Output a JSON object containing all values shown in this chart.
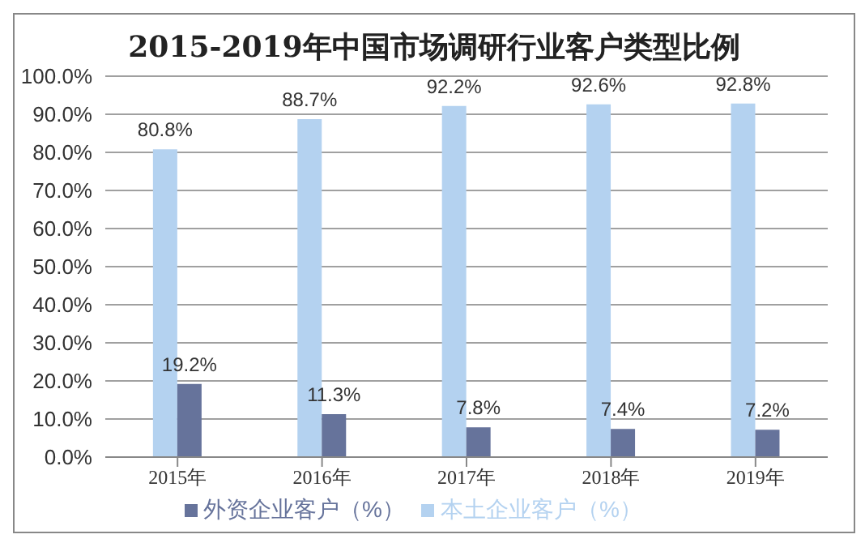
{
  "chart_data": {
    "type": "bar",
    "title": "2015-2019年中国市场调研行业客户类型比例",
    "categories": [
      "2015年",
      "2016年",
      "2017年",
      "2018年",
      "2019年"
    ],
    "series": [
      {
        "name": "本土企业客户（%）",
        "color": "#b4d2f0",
        "values": [
          80.8,
          88.7,
          92.2,
          92.6,
          92.8
        ]
      },
      {
        "name": "外资企业客户（%）",
        "color": "#66739b",
        "values": [
          19.2,
          11.3,
          7.8,
          7.4,
          7.2
        ]
      }
    ],
    "ylim": [
      0,
      100
    ],
    "yticks": [
      {
        "value": 0,
        "label": "0.0%"
      },
      {
        "value": 10,
        "label": "10.0%"
      },
      {
        "value": 20,
        "label": "20.0%"
      },
      {
        "value": 30,
        "label": "30.0%"
      },
      {
        "value": 40,
        "label": "40.0%"
      },
      {
        "value": 50,
        "label": "50.0%"
      },
      {
        "value": 60,
        "label": "60.0%"
      },
      {
        "value": 70,
        "label": "70.0%"
      },
      {
        "value": 80,
        "label": "80.0%"
      },
      {
        "value": 90,
        "label": "90.0%"
      },
      {
        "value": 100,
        "label": "100.0%"
      }
    ],
    "value_labels": [
      [
        "80.8%",
        "88.7%",
        "92.2%",
        "92.6%",
        "92.8%"
      ],
      [
        "19.2%",
        "11.3%",
        "7.8%",
        "7.4%",
        "7.2%"
      ]
    ],
    "grid": "y",
    "legend": "bottom"
  }
}
